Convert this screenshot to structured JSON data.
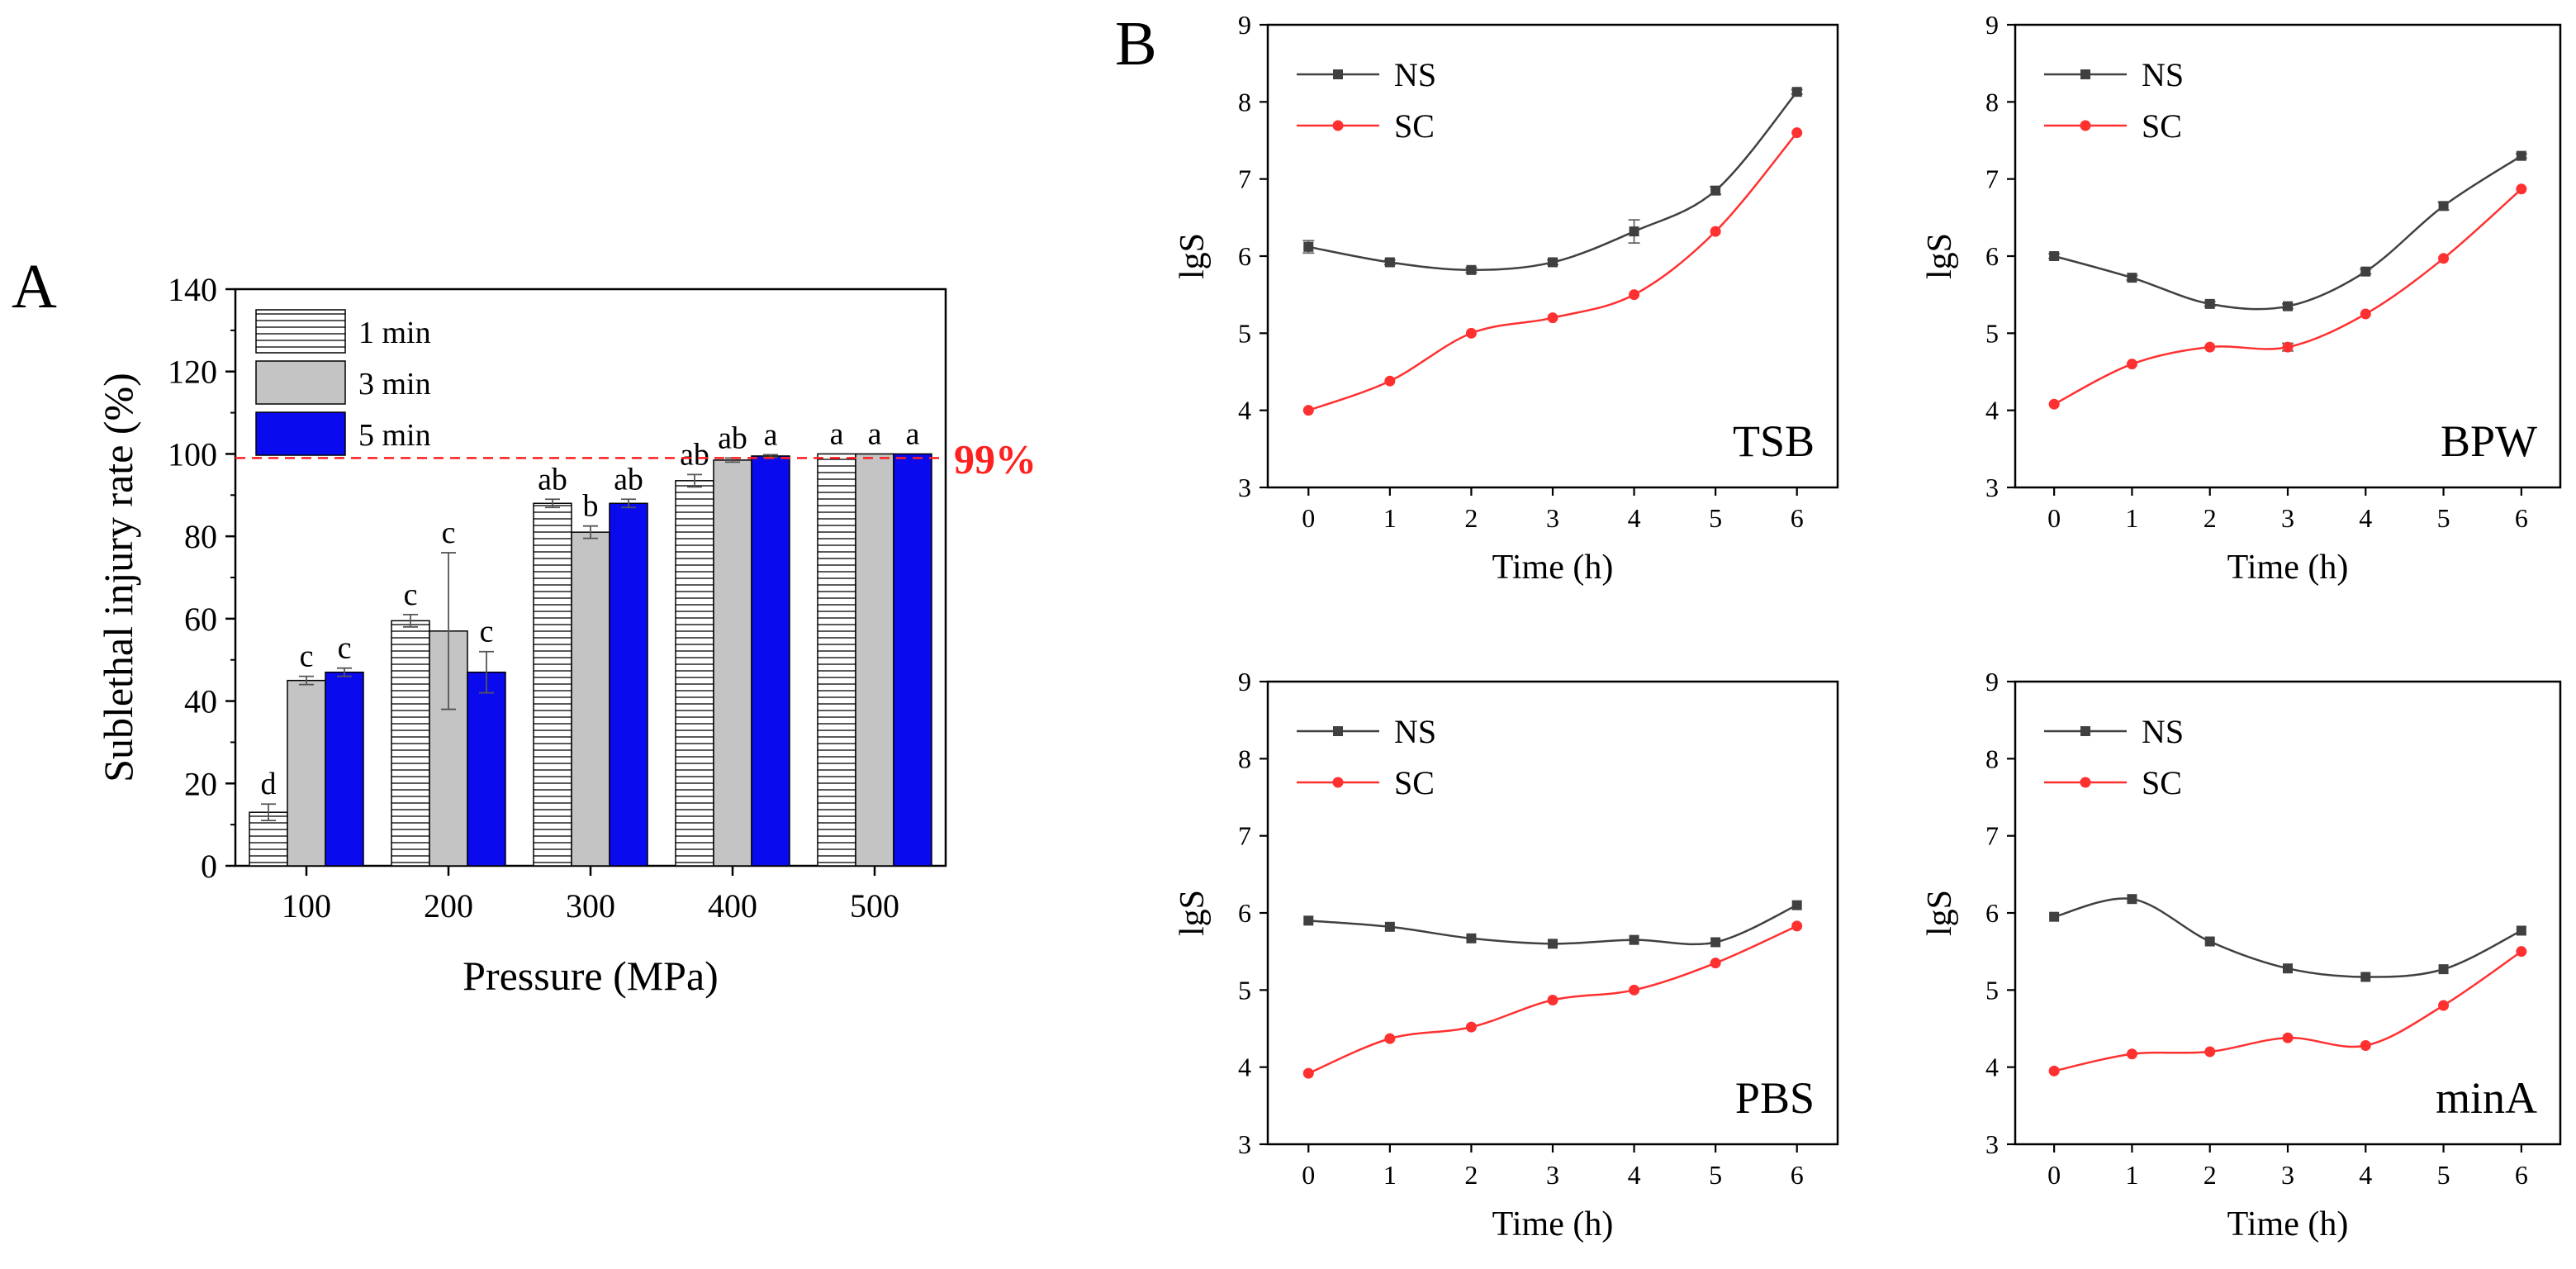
{
  "figure": {
    "panel_a_letter": "A",
    "panel_b_letter": "B"
  },
  "colors": {
    "one_min_fill": "#ffffff",
    "three_min_fill": "#c4c4c4",
    "five_min_fill": "#0a0aee",
    "threshold": "#ff2020",
    "ns": "#404040",
    "sc": "#ff3030"
  },
  "chart_data": [
    {
      "type": "bar",
      "panel": "A",
      "title": "",
      "xlabel": "Pressure (MPa)",
      "ylabel": "Sublethal injury rate (%)",
      "ylim": [
        0,
        140
      ],
      "yticks": [
        0,
        20,
        40,
        60,
        80,
        100,
        120,
        140
      ],
      "categories": [
        "100",
        "200",
        "300",
        "400",
        "500"
      ],
      "series": [
        {
          "name": "1 min",
          "pattern": "horizontal-stripes",
          "values": [
            13,
            59.5,
            88,
            93.5,
            100
          ],
          "errors": [
            2,
            1.5,
            1,
            1.5,
            0
          ],
          "letters": [
            "d",
            "c",
            "ab",
            "ab",
            "a"
          ]
        },
        {
          "name": "3 min",
          "pattern": "solid-gray",
          "values": [
            45,
            57,
            81,
            98.5,
            100
          ],
          "errors": [
            1,
            19,
            1.5,
            0.5,
            0
          ],
          "letters": [
            "c",
            "c",
            "b",
            "ab",
            "a"
          ]
        },
        {
          "name": "5 min",
          "pattern": "solid-blue",
          "values": [
            47,
            47,
            88,
            99.5,
            100
          ],
          "errors": [
            1,
            5,
            1,
            0.3,
            0
          ],
          "letters": [
            "c",
            "c",
            "ab",
            "a",
            "a"
          ]
        }
      ],
      "threshold": {
        "value": 99,
        "label": "99%"
      },
      "legend_position": "top-left"
    },
    {
      "type": "line",
      "panel": "B",
      "label": "TSB",
      "xlabel": "Time (h)",
      "ylabel": "lgS",
      "x": [
        0,
        1,
        2,
        3,
        4,
        5,
        6
      ],
      "xlim": [
        -0.5,
        6.5
      ],
      "ylim": [
        3,
        9
      ],
      "yticks": [
        3,
        4,
        5,
        6,
        7,
        8,
        9
      ],
      "series": [
        {
          "name": "NS",
          "values": [
            6.12,
            5.92,
            5.82,
            5.92,
            6.32,
            6.85,
            8.13
          ],
          "errors": [
            0.08,
            0.03,
            0.03,
            0.03,
            0.15,
            0.05,
            0.03
          ]
        },
        {
          "name": "SC",
          "values": [
            4.0,
            4.38,
            5.0,
            5.2,
            5.5,
            6.32,
            7.6
          ],
          "errors": [
            0,
            0,
            0,
            0,
            0,
            0,
            0
          ]
        }
      ],
      "legend_position": "top-left"
    },
    {
      "type": "line",
      "panel": "B",
      "label": "BPW",
      "xlabel": "Time (h)",
      "ylabel": "lgS",
      "x": [
        0,
        1,
        2,
        3,
        4,
        5,
        6
      ],
      "xlim": [
        -0.5,
        6.5
      ],
      "ylim": [
        3,
        9
      ],
      "yticks": [
        3,
        4,
        5,
        6,
        7,
        8,
        9
      ],
      "series": [
        {
          "name": "NS",
          "values": [
            6.0,
            5.72,
            5.38,
            5.35,
            5.8,
            6.65,
            7.3
          ],
          "errors": [
            0.03,
            0.03,
            0.03,
            0.03,
            0.03,
            0.05,
            0.03
          ]
        },
        {
          "name": "SC",
          "values": [
            4.08,
            4.6,
            4.82,
            4.82,
            5.25,
            5.97,
            6.87
          ],
          "errors": [
            0,
            0,
            0,
            0.05,
            0,
            0,
            0
          ]
        }
      ],
      "legend_position": "top-left"
    },
    {
      "type": "line",
      "panel": "B",
      "label": "PBS",
      "xlabel": "Time (h)",
      "ylabel": "lgS",
      "x": [
        0,
        1,
        2,
        3,
        4,
        5,
        6
      ],
      "xlim": [
        -0.5,
        6.5
      ],
      "ylim": [
        3,
        9
      ],
      "yticks": [
        3,
        4,
        5,
        6,
        7,
        8,
        9
      ],
      "series": [
        {
          "name": "NS",
          "values": [
            5.9,
            5.82,
            5.67,
            5.6,
            5.65,
            5.62,
            6.1
          ],
          "errors": [
            0,
            0,
            0,
            0,
            0,
            0,
            0
          ]
        },
        {
          "name": "SC",
          "values": [
            3.92,
            4.37,
            4.52,
            4.87,
            5.0,
            5.35,
            5.83
          ],
          "errors": [
            0,
            0,
            0,
            0,
            0,
            0,
            0
          ]
        }
      ],
      "legend_position": "top-left"
    },
    {
      "type": "line",
      "panel": "B",
      "label": "minA",
      "xlabel": "Time (h)",
      "ylabel": "lgS",
      "x": [
        0,
        1,
        2,
        3,
        4,
        5,
        6
      ],
      "xlim": [
        -0.5,
        6.5
      ],
      "ylim": [
        3,
        9
      ],
      "yticks": [
        3,
        4,
        5,
        6,
        7,
        8,
        9
      ],
      "series": [
        {
          "name": "NS",
          "values": [
            5.95,
            6.18,
            5.63,
            5.28,
            5.17,
            5.27,
            5.77
          ],
          "errors": [
            0,
            0,
            0,
            0,
            0,
            0,
            0
          ]
        },
        {
          "name": "SC",
          "values": [
            3.95,
            4.17,
            4.2,
            4.38,
            4.28,
            4.8,
            5.5
          ],
          "errors": [
            0,
            0,
            0,
            0,
            0,
            0,
            0
          ]
        }
      ],
      "legend_position": "top-left"
    }
  ]
}
